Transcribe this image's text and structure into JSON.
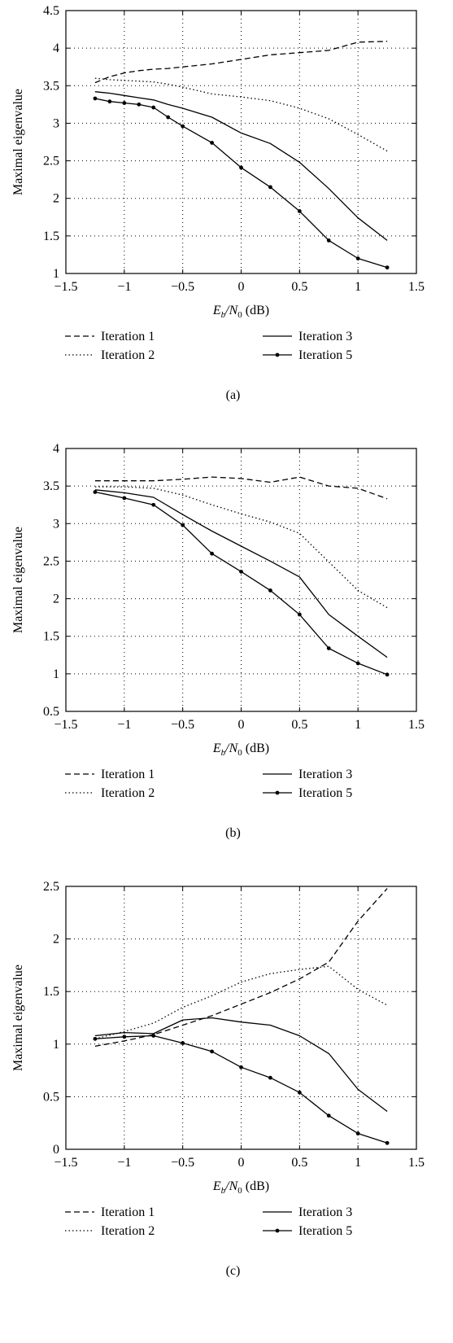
{
  "chart_data": [
    {
      "type": "line",
      "panel_label": "(a)",
      "xlabel_parts": {
        "main": "E",
        "sub1": "b",
        "slash": "/N",
        "sub2": "0",
        "unit": " (dB)"
      },
      "ylabel": "Maximal eigenvalue",
      "xlim": [
        -1.5,
        1.5
      ],
      "ylim": [
        1,
        4.5
      ],
      "x_ticks": [
        -1.5,
        -1,
        -0.5,
        0,
        0.5,
        1,
        1.5
      ],
      "x_tick_labels": [
        "−1.5",
        "−1",
        "−0.5",
        "0",
        "0.5",
        "1",
        "1.5"
      ],
      "y_ticks": [
        1,
        1.5,
        2,
        2.5,
        3,
        3.5,
        4,
        4.5
      ],
      "y_tick_labels": [
        "1",
        "1.5",
        "2",
        "2.5",
        "3",
        "3.5",
        "4",
        "4.5"
      ],
      "grid": true,
      "legend_position": "below",
      "x": [
        -1.25,
        -1.125,
        -1,
        -0.875,
        -0.75,
        -0.625,
        -0.5,
        -0.25,
        0,
        0.25,
        0.5,
        0.75,
        1,
        1.25
      ],
      "series": [
        {
          "name": "Iteration 1",
          "style": "dashed",
          "values": [
            3.54,
            3.62,
            3.67,
            3.7,
            3.72,
            3.73,
            3.75,
            3.79,
            3.85,
            3.91,
            3.94,
            3.97,
            4.08,
            4.09
          ]
        },
        {
          "name": "Iteration 2",
          "style": "dotted",
          "values": [
            3.6,
            3.58,
            3.57,
            3.56,
            3.55,
            3.52,
            3.48,
            3.39,
            3.35,
            3.3,
            3.2,
            3.06,
            2.85,
            2.63
          ]
        },
        {
          "name": "Iteration 3",
          "style": "solid",
          "values": [
            3.42,
            3.4,
            3.37,
            3.34,
            3.31,
            3.25,
            3.2,
            3.08,
            2.87,
            2.73,
            2.48,
            2.13,
            1.74,
            1.44
          ]
        },
        {
          "name": "Iteration 5",
          "style": "solid-marker",
          "values": [
            3.33,
            3.29,
            3.27,
            3.25,
            3.21,
            3.08,
            2.96,
            2.74,
            2.41,
            2.15,
            1.83,
            1.44,
            1.2,
            1.08
          ]
        }
      ]
    },
    {
      "type": "line",
      "panel_label": "(b)",
      "xlabel_parts": {
        "main": "E",
        "sub1": "b",
        "slash": "/N",
        "sub2": "0",
        "unit": " (dB)"
      },
      "ylabel": "Maximal eigenvalue",
      "xlim": [
        -1.5,
        1.5
      ],
      "ylim": [
        0.5,
        4
      ],
      "x_ticks": [
        -1.5,
        -1,
        -0.5,
        0,
        0.5,
        1,
        1.5
      ],
      "x_tick_labels": [
        "−1.5",
        "−1",
        "−0.5",
        "0",
        "0.5",
        "1",
        "1.5"
      ],
      "y_ticks": [
        0.5,
        1,
        1.5,
        2,
        2.5,
        3,
        3.5,
        4
      ],
      "y_tick_labels": [
        "0.5",
        "1",
        "1.5",
        "2",
        "2.5",
        "3",
        "3.5",
        "4"
      ],
      "grid": true,
      "legend_position": "below",
      "x": [
        -1.25,
        -1,
        -0.75,
        -0.5,
        -0.25,
        0,
        0.25,
        0.5,
        0.75,
        1,
        1.25
      ],
      "series": [
        {
          "name": "Iteration 1",
          "style": "dashed",
          "values": [
            3.57,
            3.57,
            3.57,
            3.59,
            3.62,
            3.6,
            3.55,
            3.62,
            3.5,
            3.47,
            3.33
          ]
        },
        {
          "name": "Iteration 2",
          "style": "dotted",
          "values": [
            3.49,
            3.49,
            3.47,
            3.38,
            3.25,
            3.13,
            3.02,
            2.87,
            2.49,
            2.11,
            1.88
          ]
        },
        {
          "name": "Iteration 3",
          "style": "solid",
          "values": [
            3.45,
            3.41,
            3.35,
            3.12,
            2.9,
            2.7,
            2.5,
            2.29,
            1.79,
            1.5,
            1.22
          ]
        },
        {
          "name": "Iteration 5",
          "style": "solid-marker",
          "values": [
            3.42,
            3.34,
            3.25,
            2.98,
            2.6,
            2.36,
            2.11,
            1.79,
            1.34,
            1.14,
            0.99
          ]
        }
      ]
    },
    {
      "type": "line",
      "panel_label": "(c)",
      "xlabel_parts": {
        "main": "E",
        "sub1": "b",
        "slash": "/N",
        "sub2": "0",
        "unit": " (dB)"
      },
      "ylabel": "Maximal eigenvalue",
      "xlim": [
        -1.5,
        1.5
      ],
      "ylim": [
        0,
        2.5
      ],
      "x_ticks": [
        -1.5,
        -1,
        -0.5,
        0,
        0.5,
        1,
        1.5
      ],
      "x_tick_labels": [
        "−1.5",
        "−1",
        "−0.5",
        "0",
        "0.5",
        "1",
        "1.5"
      ],
      "y_ticks": [
        0,
        0.5,
        1,
        1.5,
        2,
        2.5
      ],
      "y_tick_labels": [
        "0",
        "0.5",
        "1",
        "1.5",
        "2",
        "2.5"
      ],
      "grid": true,
      "legend_position": "below",
      "x": [
        -1.25,
        -1,
        -0.75,
        -0.5,
        -0.25,
        0,
        0.25,
        0.5,
        0.75,
        1,
        1.25
      ],
      "series": [
        {
          "name": "Iteration 1",
          "style": "dashed",
          "values": [
            0.98,
            1.03,
            1.09,
            1.18,
            1.27,
            1.38,
            1.49,
            1.62,
            1.78,
            2.17,
            2.48
          ]
        },
        {
          "name": "Iteration 2",
          "style": "dotted",
          "values": [
            1.05,
            1.12,
            1.2,
            1.35,
            1.46,
            1.59,
            1.67,
            1.71,
            1.74,
            1.52,
            1.37
          ]
        },
        {
          "name": "Iteration 3",
          "style": "solid",
          "values": [
            1.08,
            1.11,
            1.1,
            1.23,
            1.25,
            1.21,
            1.18,
            1.08,
            0.91,
            0.57,
            0.36
          ]
        },
        {
          "name": "Iteration 5",
          "style": "solid-marker",
          "values": [
            1.05,
            1.07,
            1.08,
            1.01,
            0.93,
            0.78,
            0.68,
            0.54,
            0.32,
            0.15,
            0.06
          ]
        }
      ]
    }
  ]
}
